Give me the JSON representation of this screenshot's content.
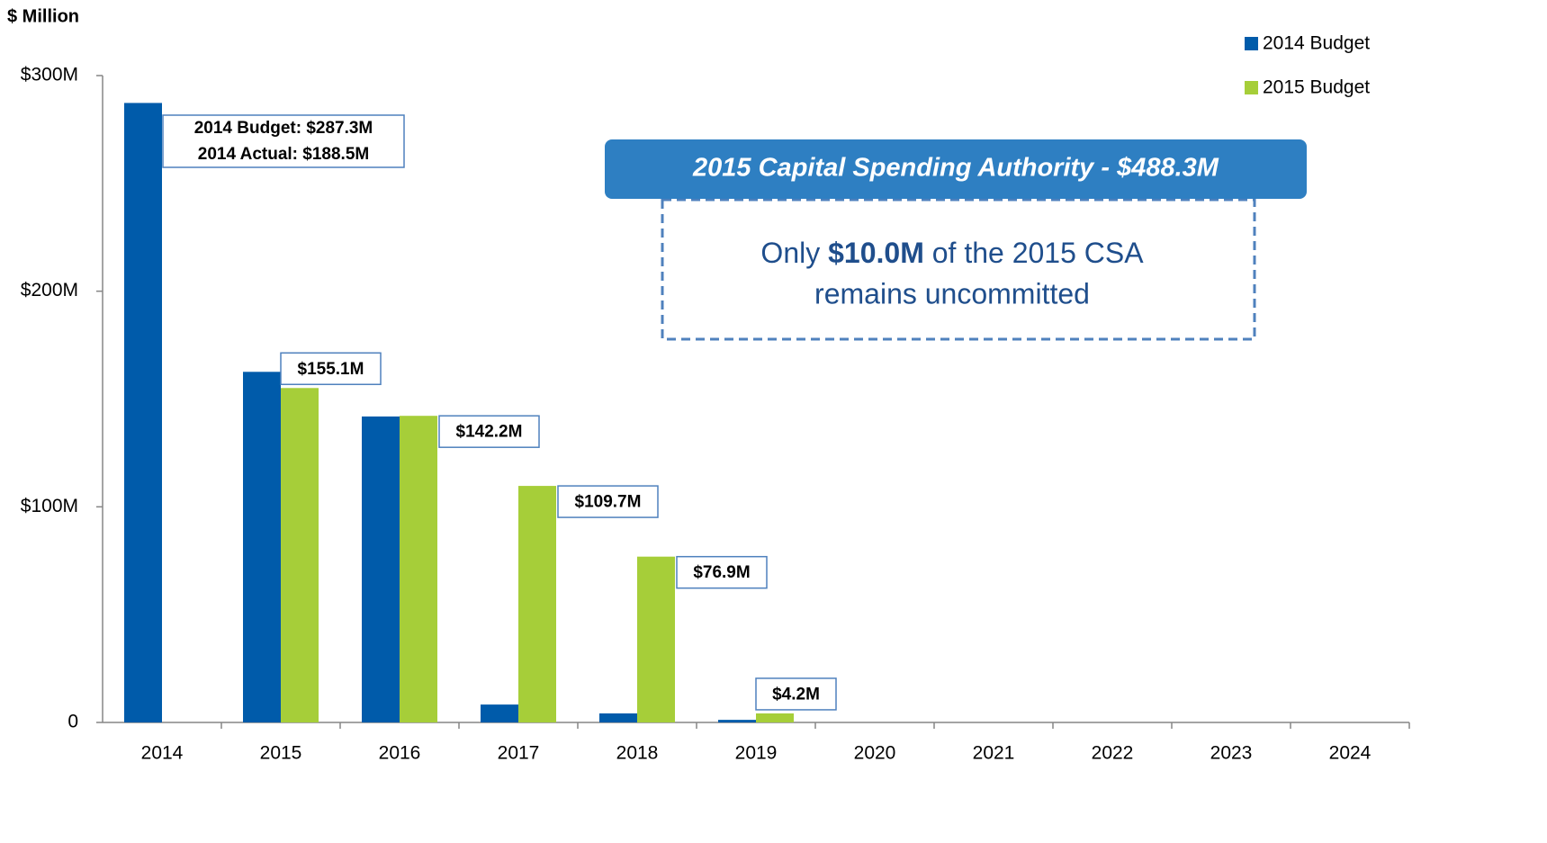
{
  "chart_data": {
    "type": "bar",
    "y_label": "$ Million",
    "categories": [
      "2014",
      "2015",
      "2016",
      "2017",
      "2018",
      "2019",
      "2020",
      "2021",
      "2022",
      "2023",
      "2024"
    ],
    "series": [
      {
        "name": "2014 Budget",
        "color": "#005baa",
        "values": [
          287.3,
          162.6,
          141.9,
          8.3,
          4.2,
          1.2,
          0,
          0,
          0,
          0,
          0
        ]
      },
      {
        "name": "2015 Budget",
        "color": "#a6ce39",
        "values": [
          null,
          155.1,
          142.2,
          109.7,
          76.9,
          4.2,
          0,
          0,
          0,
          0,
          0
        ],
        "value_labels": [
          null,
          "$155.1M",
          "$142.2M",
          "$109.7M",
          "$76.9M",
          "$4.2M",
          null,
          null,
          null,
          null,
          null
        ]
      }
    ],
    "ylim": [
      0,
      300
    ],
    "yticks": [
      0,
      {
        "value": 100,
        "label": "$100M"
      },
      {
        "value": 200,
        "label": "$200M"
      },
      {
        "value": 300,
        "label": "$300M"
      }
    ],
    "legend": "top-right",
    "annotations": {
      "budget_note": [
        "2014 Budget: $287.3M",
        "2014 Actual: $188.5M"
      ],
      "callout_title": "2015 Capital Spending Authority - $488.3M",
      "callout_line1": [
        "Only ",
        "$10.0M",
        " of the 2015 CSA"
      ],
      "callout_line2": "remains uncommitted"
    }
  }
}
